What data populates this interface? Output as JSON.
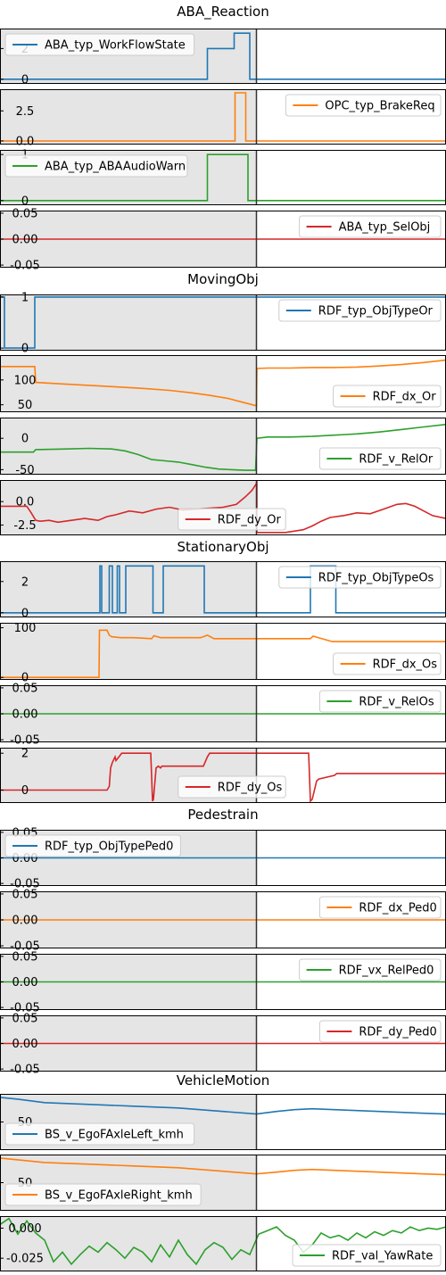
{
  "colors": {
    "blue": "#1f77b4",
    "orange": "#ff7f0e",
    "green": "#2ca02c",
    "red": "#d62728",
    "shade": "#e5e5e5",
    "cursor": "#333333"
  },
  "x_range": [
    0,
    100
  ],
  "cursor_x": 57.5,
  "shade_range": [
    0,
    57.5
  ],
  "groups": [
    {
      "title": "ABA_Reaction"
    },
    {
      "title": "MovingObj"
    },
    {
      "title": "StationaryObj"
    },
    {
      "title": "Pedestrain"
    },
    {
      "title": "VehicleMotion"
    }
  ],
  "chart_data": [
    {
      "type": "line",
      "group": "ABA_Reaction",
      "series": {
        "name": "ABA_typ_WorkFlowState",
        "color": "blue"
      },
      "x": [
        0,
        46.5,
        46.5,
        52.5,
        52.5,
        55.5,
        55.5,
        56,
        56,
        100
      ],
      "values": [
        0,
        0,
        2,
        2,
        3,
        3,
        3,
        3,
        0,
        0
      ],
      "ylim": [
        -0.3,
        3.3
      ],
      "yticks": [
        0,
        2
      ],
      "legend": "top-left"
    },
    {
      "type": "line",
      "group": "ABA_Reaction",
      "series": {
        "name": "OPC_typ_BrakeReq",
        "color": "orange"
      },
      "x": [
        0,
        52.7,
        52.7,
        55.1,
        55.1,
        100
      ],
      "values": [
        0,
        0,
        4,
        4,
        0,
        0
      ],
      "ylim": [
        -0.3,
        4.3
      ],
      "yticks": [
        0.0,
        2.5
      ],
      "ytick_labels": [
        "0.0",
        "2.5"
      ],
      "legend": "top-right"
    },
    {
      "type": "line",
      "group": "ABA_Reaction",
      "series": {
        "name": "ABA_typ_ABAAudioWarn",
        "color": "green"
      },
      "x": [
        0,
        46.5,
        46.5,
        55.6,
        55.6,
        100
      ],
      "values": [
        0,
        0,
        1,
        1,
        0,
        0
      ],
      "ylim": [
        -0.1,
        1.1
      ],
      "yticks": [
        0,
        1
      ],
      "legend": "top-left"
    },
    {
      "type": "line",
      "group": "ABA_Reaction",
      "series": {
        "name": "ABA_typ_SelObj",
        "color": "red"
      },
      "x": [
        0,
        100
      ],
      "values": [
        0,
        0
      ],
      "ylim": [
        -0.055,
        0.055
      ],
      "yticks": [
        -0.05,
        0.0,
        0.05
      ],
      "ytick_labels": [
        "-0.05",
        "0.00",
        "0.05"
      ],
      "legend": "top-right"
    },
    {
      "type": "line",
      "group": "MovingObj",
      "series": {
        "name": "RDF_typ_ObjTypeOr",
        "color": "blue"
      },
      "x": [
        0,
        1,
        1,
        7.8,
        7.8,
        100
      ],
      "values": [
        1,
        1,
        0,
        0,
        1,
        1
      ],
      "ylim": [
        -0.05,
        1.05
      ],
      "yticks": [
        0,
        1
      ],
      "legend": "top-right"
    },
    {
      "type": "line",
      "group": "MovingObj",
      "series": {
        "name": "RDF_dx_Or",
        "color": "orange"
      },
      "x": [
        0,
        7.8,
        8,
        14,
        20,
        26,
        32,
        38,
        43,
        47,
        51,
        54,
        57.5,
        57.6,
        60,
        65,
        70,
        75,
        80,
        85,
        90,
        95,
        100
      ],
      "values": [
        127,
        127,
        95,
        92,
        89,
        86,
        83,
        79,
        74,
        69,
        63,
        56,
        48,
        123,
        124,
        124,
        125,
        125,
        126,
        128,
        131,
        135,
        140
      ],
      "ylim": [
        35,
        150
      ],
      "yticks": [
        50,
        100
      ],
      "legend": "bottom-right"
    },
    {
      "type": "line",
      "group": "MovingObj",
      "series": {
        "name": "RDF_v_RelOr",
        "color": "green"
      },
      "x": [
        0,
        7.5,
        8,
        15,
        20,
        25,
        28,
        31,
        34,
        37,
        40,
        43,
        46,
        49,
        52,
        55,
        57.3,
        57.6,
        60,
        65,
        70,
        75,
        80,
        85,
        90,
        95,
        100
      ],
      "values": [
        -22,
        -22,
        -18,
        -17,
        -16,
        -17,
        -20,
        -26,
        -34,
        -36,
        -38,
        -42,
        -46,
        -49,
        -50,
        -51,
        -51,
        0,
        2,
        2,
        3,
        5,
        7,
        10,
        14,
        18,
        22
      ],
      "ylim": [
        -58,
        33
      ],
      "yticks": [
        -50,
        0
      ],
      "legend": "bottom-right"
    },
    {
      "type": "line",
      "group": "MovingObj",
      "series": {
        "name": "RDF_dy_Or",
        "color": "red"
      },
      "x": [
        0,
        6,
        7,
        8,
        9,
        11,
        13,
        16,
        19,
        22,
        24,
        26,
        29,
        32,
        35,
        38,
        41,
        44,
        47,
        50,
        53,
        55,
        56.5,
        57.6,
        57.6,
        60,
        64,
        68,
        70,
        72,
        74,
        77,
        80,
        83,
        86,
        89,
        91,
        93,
        95,
        97,
        100
      ],
      "values": [
        -0.5,
        -0.5,
        -1.2,
        -2.0,
        -2.1,
        -2.0,
        -2.2,
        -2.0,
        -1.8,
        -2.0,
        -1.6,
        -1.4,
        -1.0,
        -1.2,
        -0.8,
        -0.6,
        -0.9,
        -0.8,
        -0.7,
        -0.6,
        -0.3,
        0.5,
        1.2,
        2.0,
        -3.3,
        -3.3,
        -3.3,
        -3.0,
        -2.6,
        -2.1,
        -1.7,
        -1.5,
        -1.2,
        -1.3,
        -0.8,
        -0.3,
        -0.2,
        -0.5,
        -1.0,
        -1.5,
        -1.8
      ],
      "ylim": [
        -3.6,
        2.3
      ],
      "yticks": [
        -2.5,
        0.0
      ],
      "ytick_labels": [
        "-2.5",
        "0.0"
      ],
      "legend": "bottom-center"
    },
    {
      "type": "line",
      "group": "StationaryObj",
      "series": {
        "name": "RDF_typ_ObjTypeOs",
        "color": "blue"
      },
      "x": [
        0,
        22.4,
        22.4,
        22.8,
        22.8,
        24.5,
        24.5,
        25.2,
        25.2,
        26.3,
        26.3,
        26.8,
        26.8,
        28.2,
        28.2,
        34.3,
        34.3,
        36.6,
        36.6,
        45.8,
        45.8,
        48.8,
        48.8,
        69.6,
        69.6,
        75.3,
        75.3,
        100
      ],
      "values": [
        0,
        0,
        3,
        3,
        0,
        0,
        3,
        3,
        0,
        0,
        3,
        3,
        0,
        0,
        3,
        3,
        0,
        0,
        3,
        3,
        0,
        0,
        0,
        0,
        3,
        3,
        0,
        0
      ],
      "ylim": [
        -0.3,
        3.3
      ],
      "yticks": [
        0,
        2
      ],
      "legend": "top-right"
    },
    {
      "type": "line",
      "group": "StationaryObj",
      "series": {
        "name": "RDF_dx_Os",
        "color": "orange"
      },
      "x": [
        0,
        22.2,
        22.3,
        24,
        24.5,
        25,
        27,
        30,
        34,
        34.5,
        36,
        45,
        46.5,
        48,
        57.5,
        69.6,
        70.2,
        74.5,
        100
      ],
      "values": [
        0,
        0,
        95,
        95,
        85,
        82,
        80,
        80,
        78,
        84,
        80,
        80,
        85,
        78,
        78,
        78,
        83,
        72,
        72
      ],
      "ylim": [
        -5,
        110
      ],
      "yticks": [
        0,
        100
      ],
      "legend": "bottom-right"
    },
    {
      "type": "line",
      "group": "StationaryObj",
      "series": {
        "name": "RDF_v_RelOs",
        "color": "green"
      },
      "x": [
        0,
        100
      ],
      "values": [
        0,
        0
      ],
      "ylim": [
        -0.055,
        0.055
      ],
      "yticks": [
        -0.05,
        0.0,
        0.05
      ],
      "ytick_labels": [
        "-0.05",
        "0.00",
        "0.05"
      ],
      "legend": "top-right"
    },
    {
      "type": "line",
      "group": "StationaryObj",
      "series": {
        "name": "RDF_dy_Os",
        "color": "red"
      },
      "x": [
        0,
        24,
        24.5,
        24.8,
        25.2,
        25.8,
        26,
        27.3,
        27.8,
        33.8,
        34.2,
        34.4,
        35,
        35.5,
        36,
        36.3,
        45.6,
        46.5,
        47,
        56,
        57.5,
        69.2,
        69.6,
        70,
        71,
        71.5,
        75,
        75.5,
        100
      ],
      "values": [
        0,
        0,
        0.2,
        1.2,
        1.5,
        1.8,
        1.6,
        2.0,
        2.0,
        2.0,
        -0.6,
        -0.5,
        1.2,
        1.3,
        1.2,
        1.3,
        1.3,
        1.8,
        2.0,
        2.0,
        2.0,
        2.0,
        -0.6,
        -0.5,
        0.5,
        0.6,
        0.8,
        0.9,
        0.9
      ],
      "ylim": [
        -0.7,
        2.3
      ],
      "yticks": [
        0,
        2
      ],
      "legend": "bottom-center"
    },
    {
      "type": "line",
      "group": "Pedestrain",
      "series": {
        "name": "RDF_typ_ObjTypePed0",
        "color": "blue"
      },
      "x": [
        0,
        100
      ],
      "values": [
        0,
        0
      ],
      "ylim": [
        -0.055,
        0.055
      ],
      "yticks": [
        -0.05,
        0.0,
        0.05
      ],
      "ytick_labels": [
        "-0.05",
        "0.00",
        "0.05"
      ],
      "legend": "top-left"
    },
    {
      "type": "line",
      "group": "Pedestrain",
      "series": {
        "name": "RDF_dx_Ped0",
        "color": "orange"
      },
      "x": [
        0,
        100
      ],
      "values": [
        0,
        0
      ],
      "ylim": [
        -0.055,
        0.055
      ],
      "yticks": [
        -0.05,
        0.0,
        0.05
      ],
      "ytick_labels": [
        "-0.05",
        "0.00",
        "0.05"
      ],
      "legend": "top-right"
    },
    {
      "type": "line",
      "group": "Pedestrain",
      "series": {
        "name": "RDF_vx_RelPed0",
        "color": "green"
      },
      "x": [
        0,
        100
      ],
      "values": [
        0,
        0
      ],
      "ylim": [
        -0.055,
        0.055
      ],
      "yticks": [
        -0.05,
        0.0,
        0.05
      ],
      "ytick_labels": [
        "-0.05",
        "0.00",
        "0.05"
      ],
      "legend": "top-right"
    },
    {
      "type": "line",
      "group": "Pedestrain",
      "series": {
        "name": "RDF_dy_Ped0",
        "color": "red"
      },
      "x": [
        0,
        100
      ],
      "values": [
        0,
        0
      ],
      "ylim": [
        -0.055,
        0.055
      ],
      "yticks": [
        -0.05,
        0.0,
        0.05
      ],
      "ytick_labels": [
        "-0.05",
        "0.00",
        "0.05"
      ],
      "legend": "top-right"
    },
    {
      "type": "line",
      "group": "VehicleMotion",
      "series": {
        "name": "BS_v_EgoFAxleLeft_kmh",
        "color": "blue"
      },
      "x": [
        0,
        4,
        10,
        20,
        30,
        40,
        50,
        57.5,
        62,
        66,
        70,
        75,
        80,
        85,
        90,
        95,
        100
      ],
      "values": [
        78,
        76,
        72,
        70,
        68,
        66,
        62,
        59,
        62,
        64,
        65,
        64,
        63,
        62,
        61,
        60,
        59
      ],
      "ylim": [
        18,
        82
      ],
      "yticks": [
        50
      ],
      "legend": "bottom-left"
    },
    {
      "type": "line",
      "group": "VehicleMotion",
      "series": {
        "name": "BS_v_EgoFAxleRight_kmh",
        "color": "orange"
      },
      "x": [
        0,
        4,
        10,
        20,
        30,
        40,
        50,
        57.5,
        62,
        66,
        70,
        75,
        80,
        85,
        90,
        95,
        100
      ],
      "values": [
        78,
        76,
        73,
        71,
        69,
        67,
        63,
        60,
        62,
        64,
        65,
        64,
        63,
        62,
        61,
        60,
        59
      ],
      "ylim": [
        18,
        82
      ],
      "yticks": [
        50
      ],
      "legend": "bottom-left"
    },
    {
      "type": "line",
      "group": "VehicleMotion",
      "series": {
        "name": "RDF_val_YawRate",
        "color": "green"
      },
      "x": [
        0,
        2,
        4,
        6,
        8,
        10,
        12,
        14,
        16,
        18,
        20,
        22,
        24,
        26,
        28,
        30,
        32,
        34,
        36,
        38,
        40,
        42,
        44,
        46,
        48,
        50,
        52,
        54,
        56,
        58,
        60,
        62,
        64,
        66,
        68,
        70,
        72,
        74,
        76,
        78,
        80,
        82,
        84,
        86,
        88,
        90,
        92,
        94,
        96,
        98,
        100
      ],
      "values": [
        0.003,
        0.008,
        -0.005,
        0.006,
        -0.004,
        -0.01,
        -0.028,
        -0.02,
        -0.03,
        -0.022,
        -0.015,
        -0.02,
        -0.012,
        -0.018,
        -0.025,
        -0.016,
        -0.02,
        -0.028,
        -0.014,
        -0.024,
        -0.01,
        -0.022,
        -0.03,
        -0.018,
        -0.012,
        -0.016,
        -0.026,
        -0.018,
        -0.022,
        -0.005,
        -0.002,
        0.001,
        -0.006,
        -0.01,
        -0.02,
        -0.014,
        -0.004,
        -0.008,
        -0.006,
        -0.01,
        -0.004,
        -0.008,
        -0.003,
        -0.006,
        -0.002,
        -0.004,
        0.001,
        -0.002,
        0.0,
        -0.001,
        0.001
      ],
      "ylim": [
        -0.036,
        0.01
      ],
      "yticks": [
        -0.025,
        0.0
      ],
      "ytick_labels": [
        "-0.025",
        "0.000"
      ],
      "legend": "bottom-right"
    }
  ]
}
